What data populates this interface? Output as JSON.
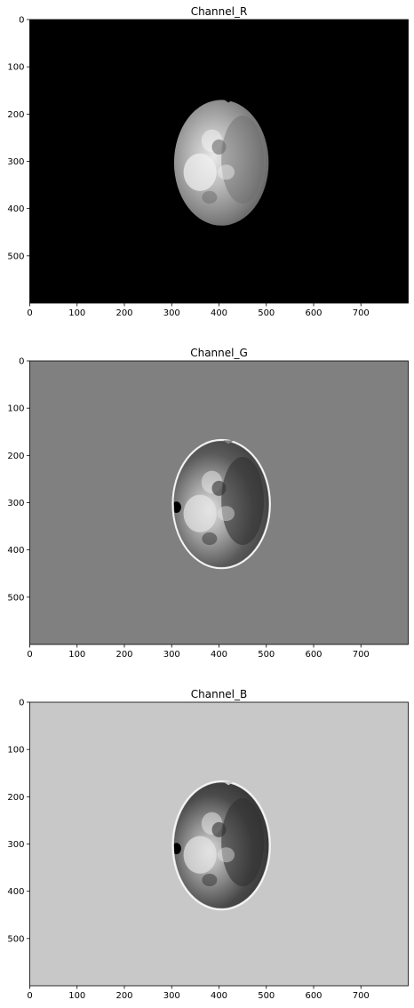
{
  "figure": {
    "panels": [
      {
        "title": "Channel_R",
        "background": "#000000"
      },
      {
        "title": "Channel_G",
        "background": "#808080"
      },
      {
        "title": "Channel_B",
        "background": "#c8c8c8"
      }
    ]
  },
  "chart_data": [
    {
      "type": "heatmap",
      "title": "Channel_R",
      "colormap": "gray",
      "background_color": "#000000",
      "xlim": [
        0,
        800
      ],
      "ylim": [
        600,
        0
      ],
      "xticks": [
        0,
        100,
        200,
        300,
        400,
        500,
        600,
        700
      ],
      "yticks": [
        0,
        100,
        200,
        300,
        400,
        500
      ],
      "object": {
        "shape": "ellipse",
        "center": [
          405,
          303
        ],
        "radius_x": 100,
        "radius_y": 133,
        "tone": "bright"
      }
    },
    {
      "type": "heatmap",
      "title": "Channel_G",
      "colormap": "gray",
      "background_color": "#808080",
      "xlim": [
        0,
        800
      ],
      "ylim": [
        600,
        0
      ],
      "xticks": [
        0,
        100,
        200,
        300,
        400,
        500,
        600,
        700
      ],
      "yticks": [
        0,
        100,
        200,
        300,
        400,
        500
      ],
      "object": {
        "shape": "ellipse",
        "center": [
          405,
          303
        ],
        "radius_x": 100,
        "radius_y": 133,
        "tone": "mixed"
      }
    },
    {
      "type": "heatmap",
      "title": "Channel_B",
      "colormap": "gray",
      "background_color": "#c8c8c8",
      "xlim": [
        0,
        800
      ],
      "ylim": [
        600,
        0
      ],
      "xticks": [
        0,
        100,
        200,
        300,
        400,
        500,
        600,
        700
      ],
      "yticks": [
        0,
        100,
        200,
        300,
        400,
        500
      ],
      "object": {
        "shape": "ellipse",
        "center": [
          405,
          303
        ],
        "radius_x": 100,
        "radius_y": 133,
        "tone": "dark"
      }
    }
  ]
}
